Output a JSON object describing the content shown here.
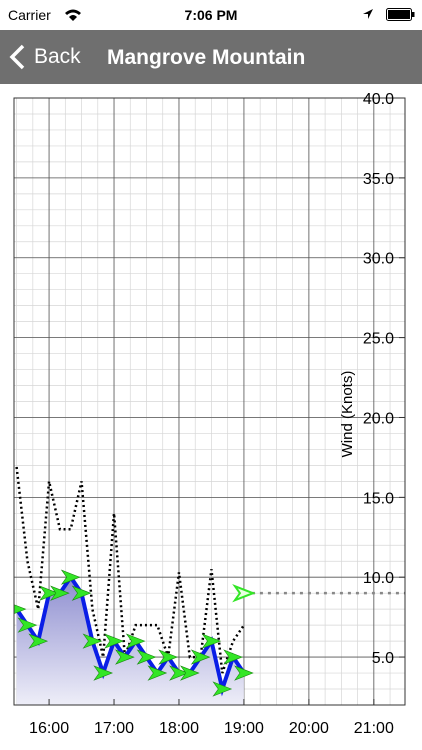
{
  "status_bar": {
    "carrier": "Carrier",
    "time": "7:06 PM"
  },
  "nav": {
    "back": "Back",
    "title": "Mangrove Mountain"
  },
  "chart_data": {
    "type": "line",
    "y_label": "Wind (Knots)",
    "x": [
      15.5,
      15.667,
      15.833,
      16,
      16.167,
      16.333,
      16.5,
      16.667,
      16.833,
      17,
      17.167,
      17.333,
      17.5,
      17.667,
      17.833,
      18,
      18.167,
      18.333,
      18.5,
      18.667,
      18.833,
      19
    ],
    "series": [
      {
        "color": "#0a1ee6",
        "values": [
          8,
          7,
          6,
          9,
          9,
          10,
          9,
          6,
          4,
          6,
          5,
          6,
          5,
          4,
          5,
          4,
          4,
          5,
          6,
          3,
          5,
          4
        ]
      },
      {
        "color": "#000000",
        "values": [
          16.9,
          11,
          8,
          16,
          13,
          13,
          16,
          8,
          5,
          14,
          5,
          7,
          7,
          7,
          5,
          10.3,
          5,
          5,
          10.5,
          4,
          6,
          7
        ]
      }
    ],
    "forecast": {
      "x": [
        19,
        21.5
      ],
      "values": [
        9,
        9
      ],
      "color": "#888888"
    },
    "marker_color": "#33e626",
    "xlim": [
      15.46,
      21.48
    ],
    "ylim": [
      2,
      40
    ],
    "xticks": [
      {
        "value": 16,
        "label": "16:00"
      },
      {
        "value": 17,
        "label": "17:00"
      },
      {
        "value": 18,
        "label": "18:00"
      },
      {
        "value": 19,
        "label": "19:00"
      },
      {
        "value": 20,
        "label": "20:00"
      },
      {
        "value": 21,
        "label": "21:00"
      }
    ],
    "yticks": [
      {
        "value": 5,
        "label": "5.0"
      },
      {
        "value": 10,
        "label": "10.0"
      },
      {
        "value": 15,
        "label": "15.0"
      },
      {
        "value": 20,
        "label": "20.0"
      },
      {
        "value": 25,
        "label": "25.0"
      },
      {
        "value": 30,
        "label": "30.0"
      },
      {
        "value": 35,
        "label": "35.0"
      },
      {
        "value": 40,
        "label": "40.0"
      }
    ],
    "grid": true
  }
}
